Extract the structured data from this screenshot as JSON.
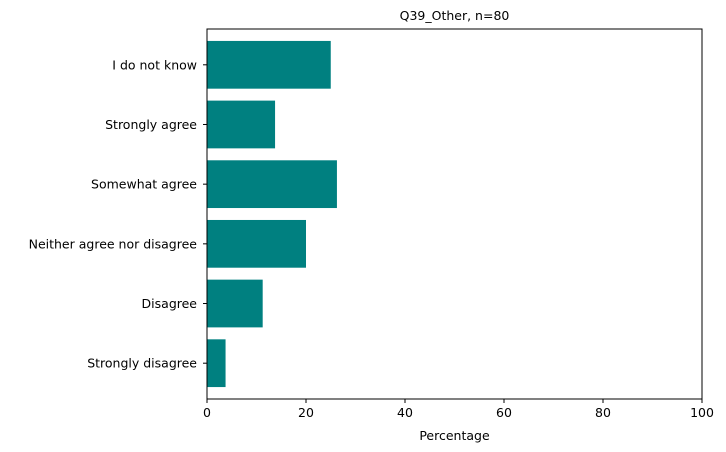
{
  "chart_data": {
    "type": "bar",
    "orientation": "horizontal",
    "title": "Q39_Other, n=80",
    "xlabel": "Percentage",
    "ylabel": "",
    "xlim": [
      0,
      100
    ],
    "xticks": [
      0,
      20,
      40,
      60,
      80,
      100
    ],
    "grid": false,
    "bar_color": "#008080",
    "categories": [
      "I do not know",
      "Strongly agree",
      "Somewhat agree",
      "Neither agree nor disagree",
      "Disagree",
      "Strongly disagree"
    ],
    "values": [
      25.0,
      13.75,
      26.25,
      20.0,
      11.25,
      3.75
    ]
  }
}
